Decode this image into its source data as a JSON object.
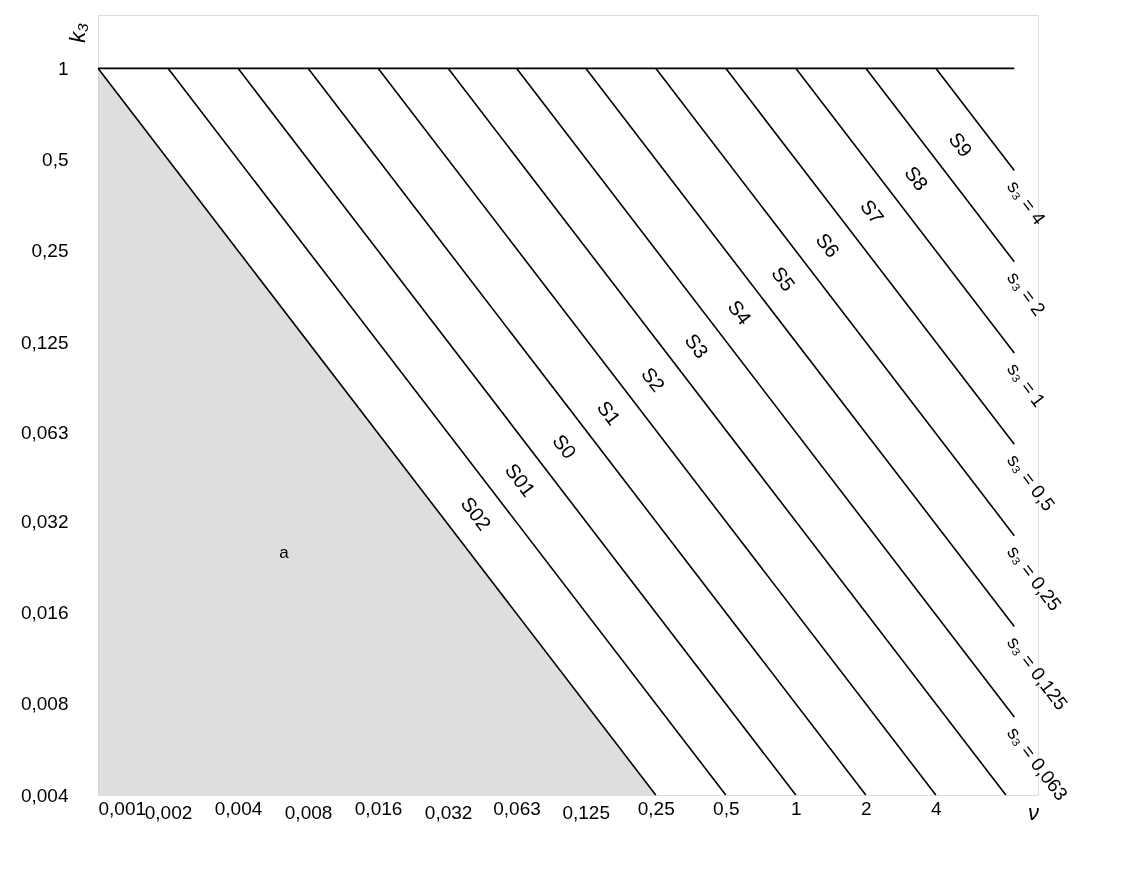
{
  "chart_data": {
    "type": "line",
    "xlabel": "ν",
    "ylabel": "k₃",
    "log": "xy",
    "grid": false,
    "xlim": [
      0.001,
      11
    ],
    "ylim": [
      0.004,
      1.5
    ],
    "xticks": [
      {
        "value": 0.001,
        "label": "0,001"
      },
      {
        "value": 0.002,
        "label": "0,002"
      },
      {
        "value": 0.004,
        "label": "0,004"
      },
      {
        "value": 0.008,
        "label": "0,008"
      },
      {
        "value": 0.016,
        "label": "0,016"
      },
      {
        "value": 0.032,
        "label": "0,032"
      },
      {
        "value": 0.063,
        "label": "0,063"
      },
      {
        "value": 0.125,
        "label": "0,125"
      },
      {
        "value": 0.25,
        "label": "0,25"
      },
      {
        "value": 0.5,
        "label": "0,5"
      },
      1,
      2,
      4
    ],
    "yticks": [
      {
        "value": 0.004,
        "label": "0,004"
      },
      {
        "value": 0.008,
        "label": "0,008"
      },
      {
        "value": 0.016,
        "label": "0,016"
      },
      {
        "value": 0.032,
        "label": "0,032"
      },
      {
        "value": 0.063,
        "label": "0,063"
      },
      {
        "value": 0.125,
        "label": "0,125"
      },
      {
        "value": 0.25,
        "label": "0,25"
      },
      {
        "value": 0.5,
        "label": "0,5"
      },
      1
    ],
    "series": [
      {
        "type": "area",
        "name": "a",
        "color": "#d0d0d0",
        "x": [
          0.001,
          0.25
        ],
        "values": [
          1,
          0.004
        ]
      },
      {
        "color": "#000000",
        "x": [
          0.001,
          8.7
        ],
        "values": [
          1,
          1
        ]
      },
      {
        "color": "#000000",
        "x": [
          0.002,
          0.5
        ],
        "values": [
          1,
          0.004
        ]
      },
      {
        "color": "#000000",
        "x": [
          0.004,
          1
        ],
        "values": [
          1,
          0.004
        ]
      },
      {
        "color": "#000000",
        "x": [
          0.008,
          2
        ],
        "values": [
          1,
          0.004
        ]
      },
      {
        "color": "#000000",
        "x": [
          0.016,
          4
        ],
        "values": [
          1,
          0.004
        ]
      },
      {
        "color": "#000000",
        "x": [
          0.032,
          8
        ],
        "values": [
          1,
          0.004
        ]
      },
      {
        "name": "s₃ = 0,063",
        "color": "#000000",
        "x": [
          0.063,
          8.7
        ],
        "values": [
          1,
          0.00724
        ]
      },
      {
        "name": "s₃ = 0,125",
        "color": "#000000",
        "x": [
          0.125,
          8.7
        ],
        "values": [
          1,
          0.0144
        ]
      },
      {
        "name": "s₃ = 0,25",
        "color": "#000000",
        "x": [
          0.25,
          8.7
        ],
        "values": [
          1,
          0.0287
        ]
      },
      {
        "name": "s₃ = 0,5",
        "color": "#000000",
        "x": [
          0.5,
          8.7
        ],
        "values": [
          1,
          0.0575
        ]
      },
      {
        "name": "s₃ = 1",
        "color": "#000000",
        "x": [
          1,
          8.7
        ],
        "values": [
          1,
          0.115
        ]
      },
      {
        "name": "s₃ = 2",
        "color": "#000000",
        "x": [
          2,
          8.7
        ],
        "values": [
          1,
          0.23
        ]
      },
      {
        "name": "s₃ = 4",
        "color": "#000000",
        "x": [
          4,
          8.7
        ],
        "values": [
          1,
          0.46
        ]
      }
    ],
    "annotations": [
      "S02",
      "S01",
      "S0",
      "S1",
      "S2",
      "S3",
      "S4",
      "S5",
      "S6",
      "S7",
      "S8",
      "S9"
    ]
  }
}
